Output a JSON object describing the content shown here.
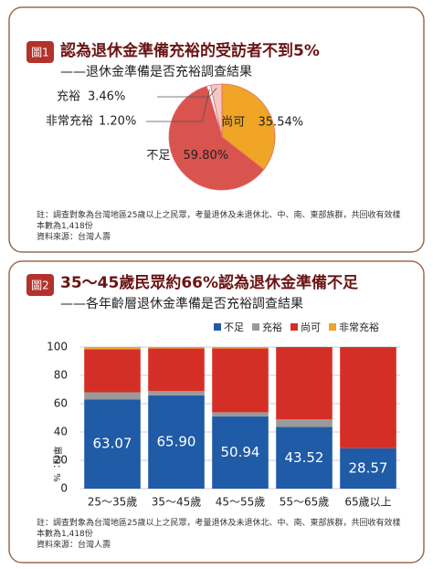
{
  "chart_data": [
    {
      "type": "pie",
      "badge": "圖1",
      "title": "認為退休金準備充裕的受訪者不到5%",
      "subtitle": "——退休金準備是否充裕調查結果",
      "categories": [
        "尚可",
        "不足",
        "非常充裕",
        "充裕"
      ],
      "values": [
        35.54,
        59.8,
        1.2,
        3.46
      ],
      "value_labels": [
        "35.54%",
        "59.80%",
        "1.20%",
        "3.46%"
      ],
      "colors": [
        "#f0a526",
        "#d9534f",
        "#ffffff",
        "#f4c7c3"
      ],
      "notes": [
        "註：調查對象為台灣地區25歲以上之民眾，考量退休及未退休北、中、南、東部族群，共回收有效樣本數為1,418份",
        "資料來源：台灣人壽"
      ]
    },
    {
      "type": "stacked_bar",
      "badge": "圖2",
      "title": "35～45歲民眾約66%認為退休金準備不足",
      "subtitle": "——各年齡層退休金準備是否充裕調查結果",
      "y_label": "單位：%",
      "categories": [
        "25～35歲",
        "35～45歲",
        "45～55歲",
        "55～65歲",
        "65歲以上"
      ],
      "series": [
        {
          "name": "不足",
          "color": "#1f5ba6",
          "values": [
            63.07,
            65.9,
            50.94,
            43.52,
            28.57
          ],
          "value_labels": [
            "63.07",
            "65.90",
            "50.94",
            "43.52",
            "28.57"
          ]
        },
        {
          "name": "充裕",
          "color": "#9a9a9a",
          "values": [
            5,
            3,
            3,
            5.48,
            0
          ]
        },
        {
          "name": "尚可",
          "color": "#d42f27",
          "values": [
            30.43,
            30.1,
            45.06,
            51,
            71.43
          ]
        },
        {
          "name": "非常充裕",
          "color": "#f2a32a",
          "values": [
            1.5,
            1,
            1,
            0,
            0
          ]
        }
      ],
      "ylim": [
        0,
        100
      ],
      "yticks": [
        0,
        20,
        40,
        60,
        80,
        100
      ],
      "grid": true,
      "notes": [
        "註：調查對象為台灣地區25歲以上之民眾，考量退休及未退休北、中、南、東部族群，共回收有效樣本數為1,418份",
        "資料來源：台灣人壽"
      ]
    }
  ]
}
